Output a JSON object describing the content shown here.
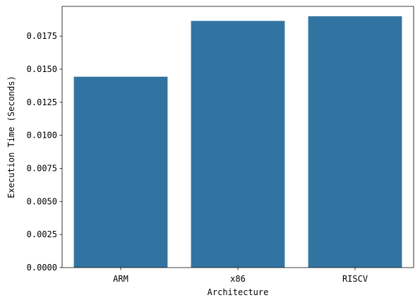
{
  "chart_data": {
    "type": "bar",
    "categories": [
      "ARM",
      "x86",
      "RISCV"
    ],
    "values": [
      0.01443,
      0.01865,
      0.019
    ],
    "title": "",
    "xlabel": "Architecture",
    "ylabel": "Execution Time (Seconds)",
    "ylim": [
      0,
      0.01975
    ],
    "yticks": [
      0.0,
      0.0025,
      0.005,
      0.0075,
      0.01,
      0.0125,
      0.015,
      0.0175
    ],
    "ytick_labels": [
      "0.0000",
      "0.0025",
      "0.0050",
      "0.0075",
      "0.0100",
      "0.0125",
      "0.0150",
      "0.0175"
    ],
    "bar_color": "#3274a1",
    "grid": false,
    "legend": "none"
  }
}
